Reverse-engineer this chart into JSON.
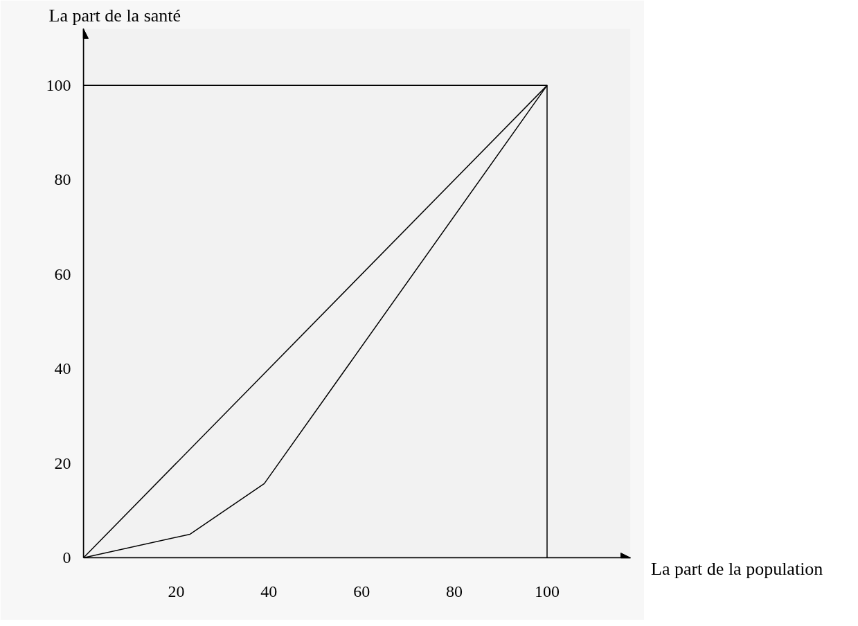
{
  "chart_data": {
    "type": "line",
    "xlabel": "La part de la population",
    "ylabel": "La part de la santé",
    "xlim": [
      0,
      118
    ],
    "ylim": [
      0,
      112
    ],
    "xticks": [
      20,
      40,
      60,
      80,
      100
    ],
    "yticks": [
      0,
      20,
      40,
      60,
      80,
      100
    ],
    "grid": false,
    "marker": "none",
    "line_style": "solid",
    "series": [
      {
        "color": "#000000",
        "x": [
          0,
          100
        ],
        "values": [
          0,
          100
        ]
      },
      {
        "color": "#000000",
        "x": [
          0,
          23,
          39,
          100
        ],
        "values": [
          0,
          5,
          15.7,
          100
        ]
      },
      {
        "color": "#000000",
        "x": [
          0,
          100,
          100
        ],
        "values": [
          100,
          100,
          0
        ]
      }
    ]
  }
}
